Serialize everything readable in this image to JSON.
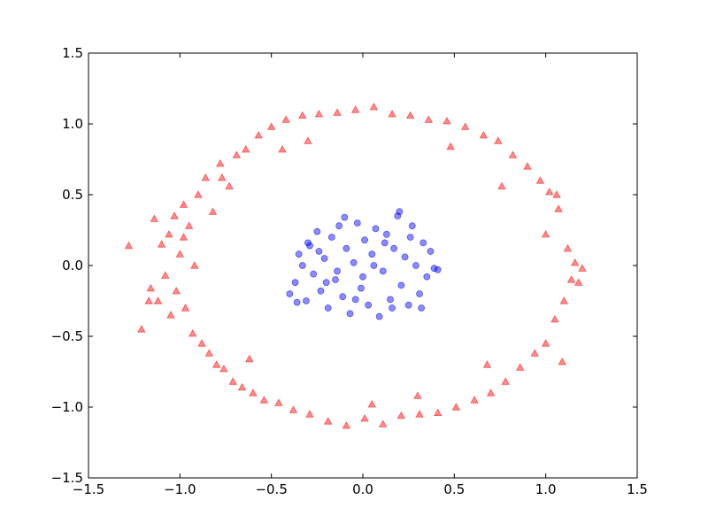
{
  "chart_data": {
    "type": "scatter",
    "title": "",
    "xlabel": "",
    "ylabel": "",
    "xlim": [
      -1.5,
      1.5
    ],
    "ylim": [
      -1.5,
      1.5
    ],
    "grid": false,
    "x_ticks": [
      -1.5,
      -1.0,
      -0.5,
      0.0,
      0.5,
      1.0,
      1.5
    ],
    "y_ticks": [
      -1.5,
      -1.0,
      -0.5,
      0.0,
      0.5,
      1.0,
      1.5
    ],
    "x_tick_labels": [
      "−1.5",
      "−1.0",
      "−0.5",
      "0.0",
      "0.5",
      "1.0",
      "1.5"
    ],
    "y_tick_labels": [
      "−1.5",
      "−1.0",
      "−0.5",
      "0.0",
      "0.5",
      "1.0",
      "1.5"
    ],
    "series": [
      {
        "marker": "triangle",
        "color": "#ff0000",
        "points": [
          [
            -1.28,
            0.14
          ],
          [
            -1.21,
            -0.45
          ],
          [
            -1.17,
            -0.25
          ],
          [
            -1.16,
            -0.16
          ],
          [
            -1.14,
            0.33
          ],
          [
            -1.12,
            -0.25
          ],
          [
            -1.1,
            0.15
          ],
          [
            -1.08,
            -0.07
          ],
          [
            -1.06,
            0.22
          ],
          [
            -1.05,
            -0.35
          ],
          [
            -1.03,
            0.35
          ],
          [
            -1.02,
            -0.18
          ],
          [
            -1.0,
            0.08
          ],
          [
            -0.98,
            0.43
          ],
          [
            -0.97,
            -0.3
          ],
          [
            -0.95,
            0.28
          ],
          [
            -0.93,
            -0.48
          ],
          [
            -0.92,
            0.0
          ],
          [
            -0.9,
            0.5
          ],
          [
            -0.88,
            -0.55
          ],
          [
            -0.86,
            0.62
          ],
          [
            -0.84,
            -0.62
          ],
          [
            -0.82,
            0.38
          ],
          [
            -0.8,
            -0.7
          ],
          [
            -0.78,
            0.72
          ],
          [
            -0.76,
            -0.73
          ],
          [
            -0.73,
            0.56
          ],
          [
            -0.71,
            -0.82
          ],
          [
            -0.69,
            0.78
          ],
          [
            -0.66,
            -0.86
          ],
          [
            -0.64,
            0.82
          ],
          [
            -0.6,
            -0.9
          ],
          [
            -0.57,
            0.92
          ],
          [
            -0.54,
            -0.95
          ],
          [
            -0.5,
            0.98
          ],
          [
            -0.46,
            -0.97
          ],
          [
            -0.42,
            1.03
          ],
          [
            -0.38,
            -1.02
          ],
          [
            -0.33,
            1.06
          ],
          [
            -0.29,
            -1.05
          ],
          [
            -0.24,
            1.07
          ],
          [
            -0.19,
            -1.1
          ],
          [
            -0.14,
            1.08
          ],
          [
            -0.09,
            -1.13
          ],
          [
            -0.04,
            1.1
          ],
          [
            0.01,
            -1.08
          ],
          [
            0.06,
            1.12
          ],
          [
            0.11,
            -1.12
          ],
          [
            0.16,
            1.07
          ],
          [
            0.21,
            -1.06
          ],
          [
            0.26,
            1.06
          ],
          [
            0.31,
            -1.05
          ],
          [
            0.36,
            1.03
          ],
          [
            0.41,
            -1.04
          ],
          [
            0.46,
            1.02
          ],
          [
            0.51,
            -1.0
          ],
          [
            0.56,
            0.98
          ],
          [
            0.61,
            -0.95
          ],
          [
            0.66,
            0.92
          ],
          [
            0.7,
            -0.9
          ],
          [
            0.74,
            0.88
          ],
          [
            0.78,
            -0.82
          ],
          [
            0.82,
            0.78
          ],
          [
            0.86,
            -0.72
          ],
          [
            0.9,
            0.7
          ],
          [
            0.94,
            -0.62
          ],
          [
            0.97,
            0.6
          ],
          [
            1.0,
            -0.55
          ],
          [
            1.02,
            0.52
          ],
          [
            1.05,
            -0.38
          ],
          [
            1.07,
            0.4
          ],
          [
            1.1,
            -0.25
          ],
          [
            1.12,
            0.12
          ],
          [
            1.14,
            -0.1
          ],
          [
            1.16,
            0.02
          ],
          [
            1.18,
            -0.12
          ],
          [
            1.2,
            -0.02
          ],
          [
            1.09,
            -0.68
          ],
          [
            1.06,
            0.5
          ],
          [
            -0.44,
            0.82
          ],
          [
            0.48,
            0.84
          ],
          [
            -0.77,
            0.62
          ],
          [
            0.76,
            0.56
          ],
          [
            0.68,
            -0.7
          ],
          [
            -0.62,
            -0.66
          ],
          [
            -0.98,
            0.2
          ],
          [
            1.0,
            0.22
          ],
          [
            -0.3,
            0.88
          ],
          [
            0.3,
            -0.92
          ],
          [
            0.05,
            -0.98
          ]
        ]
      },
      {
        "marker": "circle",
        "color": "#0000ff",
        "points": [
          [
            -0.4,
            -0.2
          ],
          [
            -0.37,
            -0.12
          ],
          [
            -0.35,
            0.08
          ],
          [
            -0.33,
            0.0
          ],
          [
            -0.31,
            -0.25
          ],
          [
            -0.29,
            0.14
          ],
          [
            -0.27,
            -0.06
          ],
          [
            -0.25,
            0.24
          ],
          [
            -0.23,
            -0.18
          ],
          [
            -0.21,
            0.05
          ],
          [
            -0.19,
            -0.3
          ],
          [
            -0.17,
            0.2
          ],
          [
            -0.15,
            -0.1
          ],
          [
            -0.13,
            0.28
          ],
          [
            -0.11,
            -0.22
          ],
          [
            -0.09,
            0.12
          ],
          [
            -0.07,
            -0.34
          ],
          [
            -0.05,
            0.02
          ],
          [
            -0.03,
            0.3
          ],
          [
            -0.01,
            -0.16
          ],
          [
            0.01,
            0.18
          ],
          [
            0.03,
            -0.28
          ],
          [
            0.05,
            0.08
          ],
          [
            0.07,
            0.26
          ],
          [
            0.09,
            -0.36
          ],
          [
            0.11,
            -0.04
          ],
          [
            0.13,
            0.22
          ],
          [
            0.15,
            -0.24
          ],
          [
            0.17,
            0.12
          ],
          [
            0.19,
            0.35
          ],
          [
            0.21,
            -0.14
          ],
          [
            0.23,
            0.06
          ],
          [
            0.25,
            -0.28
          ],
          [
            0.27,
            0.28
          ],
          [
            0.29,
            0.0
          ],
          [
            0.31,
            -0.2
          ],
          [
            0.33,
            0.16
          ],
          [
            0.35,
            -0.08
          ],
          [
            0.37,
            0.1
          ],
          [
            0.39,
            -0.02
          ],
          [
            0.41,
            -0.03
          ],
          [
            -0.24,
            0.1
          ],
          [
            -0.14,
            -0.04
          ],
          [
            -0.04,
            -0.24
          ],
          [
            0.06,
            0.0
          ],
          [
            0.16,
            -0.3
          ],
          [
            0.26,
            0.2
          ],
          [
            -0.3,
            0.16
          ],
          [
            0.2,
            0.38
          ],
          [
            -0.1,
            0.34
          ],
          [
            0.32,
            -0.3
          ],
          [
            -0.36,
            -0.26
          ],
          [
            0.0,
            -0.08
          ],
          [
            0.12,
            0.16
          ],
          [
            -0.2,
            -0.12
          ]
        ]
      }
    ]
  }
}
